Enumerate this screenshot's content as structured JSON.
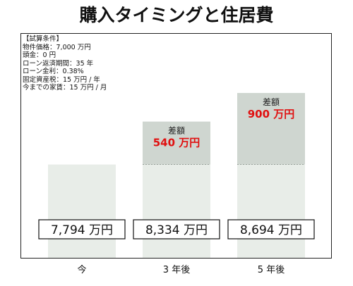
{
  "title": "購入タイミングと住居費",
  "conditions": {
    "heading": "【試算条件】",
    "lines": [
      "物件価格：7,000 万円",
      "頭金：0 円",
      "ローン返済期間：35 年",
      "ローン金利：0.38%",
      "固定資産税：15 万円 / 年",
      "今までの家賃：15 万円 / 月"
    ]
  },
  "colors": {
    "base_bar": "#e8ede8",
    "diff_bar": "#cfd6d0",
    "diff_text": "#e01010",
    "frame": "#222222"
  },
  "chart_data": {
    "type": "bar",
    "categories": [
      "今",
      "3 年後",
      "5 年後"
    ],
    "values": [
      7794,
      8334,
      8694
    ],
    "value_labels": [
      "7,794 万円",
      "8,334 万円",
      "8,694 万円"
    ],
    "baseline_value": 7794,
    "differences": [
      null,
      {
        "heading": "差額",
        "value": 540,
        "label": "540 万円"
      },
      {
        "heading": "差額",
        "value": 900,
        "label": "900 万円"
      }
    ]
  }
}
